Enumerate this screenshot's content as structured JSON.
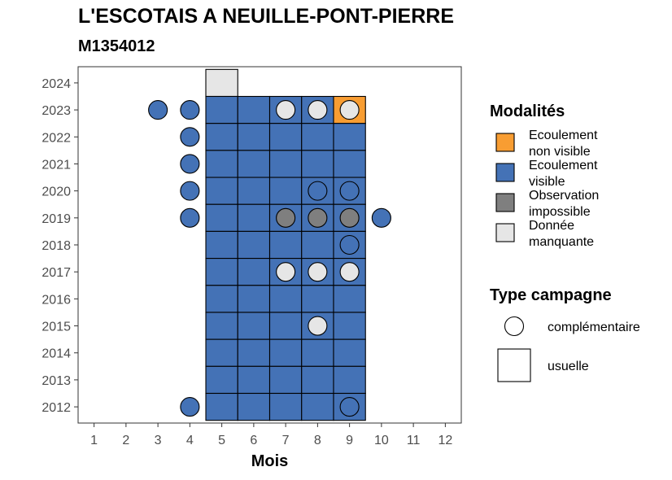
{
  "chart_data": {
    "type": "heatmap",
    "title": "L'ESCOTAIS A NEUILLE-PONT-PIERRE",
    "subtitle": "M1354012",
    "xlabel": "Mois",
    "ylabel": "",
    "x_ticks": [
      "1",
      "2",
      "3",
      "4",
      "5",
      "6",
      "7",
      "8",
      "9",
      "10",
      "11",
      "12"
    ],
    "y_ticks": [
      "2012",
      "2013",
      "2014",
      "2015",
      "2016",
      "2017",
      "2018",
      "2019",
      "2020",
      "2021",
      "2022",
      "2023",
      "2024"
    ],
    "xlim": [
      0.5,
      12.5
    ],
    "ylim": [
      2011.4,
      2024.6
    ],
    "grid": false,
    "legend_position": "right",
    "legend_modalites": {
      "title": "Modalités",
      "items": [
        {
          "key": "non_visible",
          "line1": "Ecoulement",
          "line2": "non visible",
          "color": "#F89D32"
        },
        {
          "key": "visible",
          "line1": "Ecoulement",
          "line2": "visible",
          "color": "#4472B6"
        },
        {
          "key": "impossible",
          "line1": "Observation",
          "line2": "impossible",
          "color": "#7F7F7F"
        },
        {
          "key": "manquante",
          "line1": "Donnée",
          "line2": "manquante",
          "color": "#E6E6E6"
        }
      ]
    },
    "legend_type": {
      "title": "Type campagne",
      "items": [
        {
          "label": "complémentaire",
          "shape": "circle"
        },
        {
          "label": "usuelle",
          "shape": "square"
        }
      ]
    },
    "usuelle": [
      {
        "x": 5,
        "y": 2024,
        "m": "manquante"
      },
      {
        "x": 5,
        "y": 2023,
        "m": "visible"
      },
      {
        "x": 6,
        "y": 2023,
        "m": "visible"
      },
      {
        "x": 7,
        "y": 2023,
        "m": "visible"
      },
      {
        "x": 8,
        "y": 2023,
        "m": "visible"
      },
      {
        "x": 9,
        "y": 2023,
        "m": "non_visible"
      },
      {
        "x": 5,
        "y": 2022,
        "m": "visible"
      },
      {
        "x": 6,
        "y": 2022,
        "m": "visible"
      },
      {
        "x": 7,
        "y": 2022,
        "m": "visible"
      },
      {
        "x": 8,
        "y": 2022,
        "m": "visible"
      },
      {
        "x": 9,
        "y": 2022,
        "m": "visible"
      },
      {
        "x": 5,
        "y": 2021,
        "m": "visible"
      },
      {
        "x": 6,
        "y": 2021,
        "m": "visible"
      },
      {
        "x": 7,
        "y": 2021,
        "m": "visible"
      },
      {
        "x": 8,
        "y": 2021,
        "m": "visible"
      },
      {
        "x": 9,
        "y": 2021,
        "m": "visible"
      },
      {
        "x": 5,
        "y": 2020,
        "m": "visible"
      },
      {
        "x": 6,
        "y": 2020,
        "m": "visible"
      },
      {
        "x": 7,
        "y": 2020,
        "m": "visible"
      },
      {
        "x": 8,
        "y": 2020,
        "m": "visible"
      },
      {
        "x": 9,
        "y": 2020,
        "m": "visible"
      },
      {
        "x": 5,
        "y": 2019,
        "m": "visible"
      },
      {
        "x": 6,
        "y": 2019,
        "m": "visible"
      },
      {
        "x": 7,
        "y": 2019,
        "m": "visible"
      },
      {
        "x": 8,
        "y": 2019,
        "m": "visible"
      },
      {
        "x": 9,
        "y": 2019,
        "m": "visible"
      },
      {
        "x": 5,
        "y": 2018,
        "m": "visible"
      },
      {
        "x": 6,
        "y": 2018,
        "m": "visible"
      },
      {
        "x": 7,
        "y": 2018,
        "m": "visible"
      },
      {
        "x": 8,
        "y": 2018,
        "m": "visible"
      },
      {
        "x": 9,
        "y": 2018,
        "m": "visible"
      },
      {
        "x": 5,
        "y": 2017,
        "m": "visible"
      },
      {
        "x": 6,
        "y": 2017,
        "m": "visible"
      },
      {
        "x": 7,
        "y": 2017,
        "m": "visible"
      },
      {
        "x": 8,
        "y": 2017,
        "m": "visible"
      },
      {
        "x": 9,
        "y": 2017,
        "m": "visible"
      },
      {
        "x": 5,
        "y": 2016,
        "m": "visible"
      },
      {
        "x": 6,
        "y": 2016,
        "m": "visible"
      },
      {
        "x": 7,
        "y": 2016,
        "m": "visible"
      },
      {
        "x": 8,
        "y": 2016,
        "m": "visible"
      },
      {
        "x": 9,
        "y": 2016,
        "m": "visible"
      },
      {
        "x": 5,
        "y": 2015,
        "m": "visible"
      },
      {
        "x": 6,
        "y": 2015,
        "m": "visible"
      },
      {
        "x": 7,
        "y": 2015,
        "m": "visible"
      },
      {
        "x": 8,
        "y": 2015,
        "m": "visible"
      },
      {
        "x": 9,
        "y": 2015,
        "m": "visible"
      },
      {
        "x": 5,
        "y": 2014,
        "m": "visible"
      },
      {
        "x": 6,
        "y": 2014,
        "m": "visible"
      },
      {
        "x": 7,
        "y": 2014,
        "m": "visible"
      },
      {
        "x": 8,
        "y": 2014,
        "m": "visible"
      },
      {
        "x": 9,
        "y": 2014,
        "m": "visible"
      },
      {
        "x": 5,
        "y": 2013,
        "m": "visible"
      },
      {
        "x": 6,
        "y": 2013,
        "m": "visible"
      },
      {
        "x": 7,
        "y": 2013,
        "m": "visible"
      },
      {
        "x": 8,
        "y": 2013,
        "m": "visible"
      },
      {
        "x": 9,
        "y": 2013,
        "m": "visible"
      },
      {
        "x": 5,
        "y": 2012,
        "m": "visible"
      },
      {
        "x": 6,
        "y": 2012,
        "m": "visible"
      },
      {
        "x": 7,
        "y": 2012,
        "m": "visible"
      },
      {
        "x": 8,
        "y": 2012,
        "m": "visible"
      },
      {
        "x": 9,
        "y": 2012,
        "m": "visible"
      }
    ],
    "complementaire": [
      {
        "x": 3,
        "y": 2023,
        "m": "visible"
      },
      {
        "x": 4,
        "y": 2023,
        "m": "visible"
      },
      {
        "x": 7,
        "y": 2023,
        "m": "manquante"
      },
      {
        "x": 8,
        "y": 2023,
        "m": "manquante"
      },
      {
        "x": 9,
        "y": 2023,
        "m": "manquante"
      },
      {
        "x": 4,
        "y": 2022,
        "m": "visible"
      },
      {
        "x": 4,
        "y": 2021,
        "m": "visible"
      },
      {
        "x": 4,
        "y": 2020,
        "m": "visible"
      },
      {
        "x": 8,
        "y": 2020,
        "m": "visible"
      },
      {
        "x": 9,
        "y": 2020,
        "m": "visible"
      },
      {
        "x": 4,
        "y": 2019,
        "m": "visible"
      },
      {
        "x": 7,
        "y": 2019,
        "m": "impossible"
      },
      {
        "x": 8,
        "y": 2019,
        "m": "impossible"
      },
      {
        "x": 9,
        "y": 2019,
        "m": "impossible"
      },
      {
        "x": 10,
        "y": 2019,
        "m": "visible"
      },
      {
        "x": 9,
        "y": 2018,
        "m": "visible"
      },
      {
        "x": 7,
        "y": 2017,
        "m": "manquante"
      },
      {
        "x": 8,
        "y": 2017,
        "m": "manquante"
      },
      {
        "x": 9,
        "y": 2017,
        "m": "manquante"
      },
      {
        "x": 8,
        "y": 2015,
        "m": "manquante"
      },
      {
        "x": 4,
        "y": 2012,
        "m": "visible"
      },
      {
        "x": 9,
        "y": 2012,
        "m": "visible"
      }
    ]
  }
}
